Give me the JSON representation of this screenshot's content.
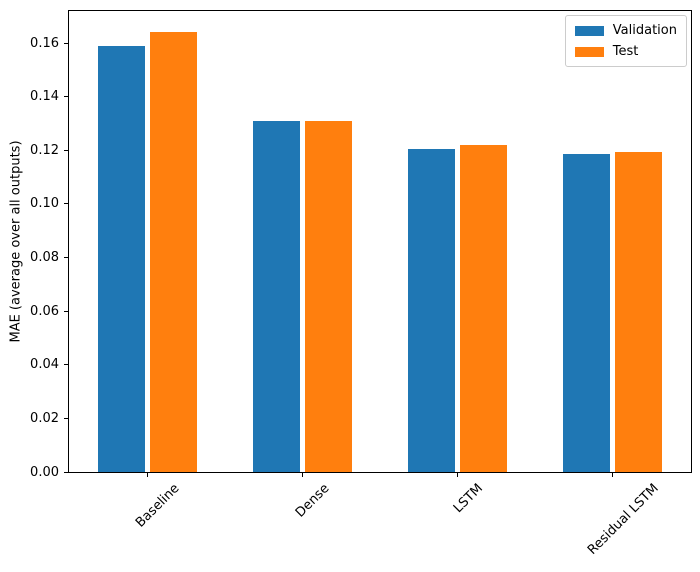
{
  "chart_data": {
    "type": "bar",
    "title": "",
    "categories": [
      "Baseline",
      "Dense",
      "LSTM",
      "Residual LSTM"
    ],
    "series": [
      {
        "name": "Validation",
        "color": "#1f77b4",
        "values": [
          0.159,
          0.131,
          0.1205,
          0.1185
        ]
      },
      {
        "name": "Test",
        "color": "#ff7f0e",
        "values": [
          0.164,
          0.131,
          0.122,
          0.1195
        ]
      }
    ],
    "xlabel": "",
    "ylabel": "MAE (average over all outputs)",
    "ylim": [
      0,
      0.172
    ],
    "yticks": [
      0.0,
      0.02,
      0.04,
      0.06,
      0.08,
      0.1,
      0.12,
      0.14,
      0.16
    ],
    "ytick_labels": [
      "0.00",
      "0.02",
      "0.04",
      "0.06",
      "0.08",
      "0.10",
      "0.12",
      "0.14",
      "0.16"
    ],
    "xtick_rotation_deg": 45,
    "grid": false,
    "legend": {
      "position": "upper right",
      "entries": [
        "Validation",
        "Test"
      ]
    }
  },
  "colors": {
    "background": "#ffffff",
    "spine": "#000000",
    "text": "#000000",
    "legend_border": "#cccccc"
  }
}
